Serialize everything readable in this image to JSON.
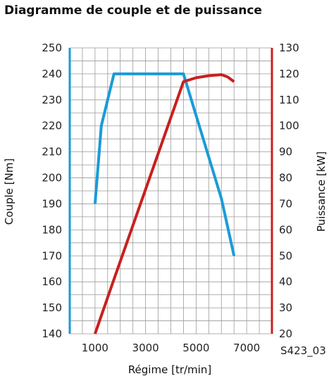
{
  "chart_data": {
    "type": "line",
    "title": "Diagramme de couple et de puissance",
    "xlabel": "Régime [tr/min]",
    "ylabel_left": "Couple [Nm]",
    "ylabel_right": "Puissance [kW]",
    "figure_ref": "S423_03",
    "xlim": [
      0,
      8000
    ],
    "ylim_left": [
      140,
      250
    ],
    "ylim_right": [
      20,
      130
    ],
    "x_ticks": [
      1000,
      3000,
      5000,
      7000
    ],
    "y_ticks_left": [
      140,
      150,
      160,
      170,
      180,
      190,
      200,
      210,
      220,
      230,
      240,
      250
    ],
    "y_ticks_right": [
      20,
      30,
      40,
      50,
      60,
      70,
      80,
      90,
      100,
      110,
      120,
      130
    ],
    "grid": true,
    "colors": {
      "torque": "#1a9bd7",
      "power": "#c8201e"
    },
    "series": [
      {
        "key": "torque",
        "axis": "left",
        "x": [
          1000,
          1250,
          1750,
          4500,
          6000,
          6500
        ],
        "y": [
          190,
          220,
          240,
          240,
          192,
          170
        ]
      },
      {
        "key": "power",
        "axis": "right",
        "x": [
          1000,
          1750,
          4500,
          5000,
          5500,
          6000,
          6250,
          6500
        ],
        "y": [
          20,
          41,
          117,
          118.5,
          119.3,
          119.7,
          118.8,
          117
        ]
      }
    ]
  }
}
